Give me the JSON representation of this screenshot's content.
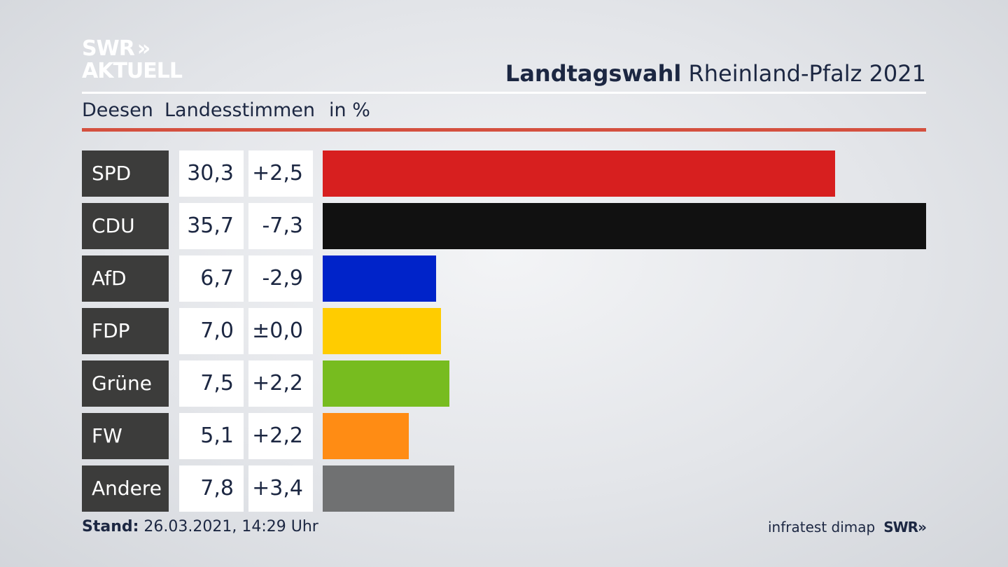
{
  "logo": {
    "line1": "SWR",
    "chevrons": "»",
    "line2": "AKTUELL"
  },
  "header": {
    "title_bold": "Landtagswahl",
    "title_regular": "Rheinland-Pfalz 2021"
  },
  "subheader": {
    "place": "Deesen",
    "vote_type": "Landesstimmen",
    "unit": "in %"
  },
  "colors": {
    "accent_rule": "#d4503f",
    "label_bg": "#3c3c3b"
  },
  "chart_data": {
    "type": "bar",
    "categories": [
      "SPD",
      "CDU",
      "AfD",
      "FDP",
      "Grüne",
      "FW",
      "Andere"
    ],
    "values": [
      30.3,
      35.7,
      6.7,
      7.0,
      7.5,
      5.1,
      7.8
    ],
    "value_labels": [
      "30,3",
      "35,7",
      "6,7",
      "7,0",
      "7,5",
      "5,1",
      "7,8"
    ],
    "changes": [
      2.5,
      -7.3,
      -2.9,
      0.0,
      2.2,
      2.2,
      3.4
    ],
    "change_labels": [
      "+2,5",
      "-7,3",
      "-2,9",
      "±0,0",
      "+2,2",
      "+2,2",
      "+3,4"
    ],
    "colors": [
      "#d71f1f",
      "#111111",
      "#0023c9",
      "#ffcc00",
      "#77bc1f",
      "#ff8c14",
      "#707172"
    ],
    "title": "Landtagswahl Rheinland-Pfalz 2021",
    "orientation": "horizontal",
    "xlim": [
      0,
      35.7
    ]
  },
  "footer": {
    "stand_label": "Stand:",
    "stand_value": "26.03.2021, 14:29 Uhr",
    "source": "infratest dimap",
    "brand": "SWR",
    "brand_chevrons": "»"
  }
}
